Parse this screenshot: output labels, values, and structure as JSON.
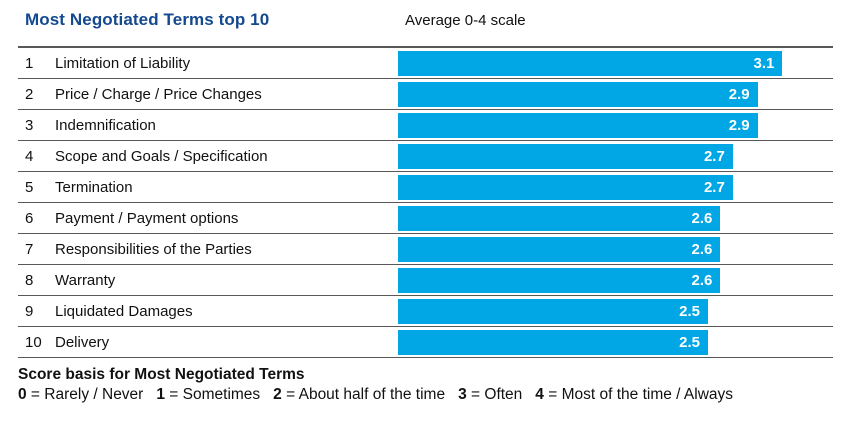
{
  "header": {
    "title": "Most Negotiated Terms top 10",
    "scale_note": "Average 0-4 scale"
  },
  "chart_data": {
    "type": "bar",
    "orientation": "horizontal",
    "title": "Most Negotiated Terms top 10",
    "scale_label": "Average 0-4 scale",
    "xlim": [
      0,
      4
    ],
    "grid": false,
    "legend_position": "none",
    "bar_color": "#00a7e4",
    "title_color": "#14498f",
    "ranks": [
      "1",
      "2",
      "3",
      "4",
      "5",
      "6",
      "7",
      "8",
      "9",
      "10"
    ],
    "categories": [
      "Limitation of Liability",
      "Price / Charge / Price Changes",
      "Indemnification",
      "Scope and Goals / Specification",
      "Termination",
      "Payment / Payment options",
      "Responsibilities of the Parties",
      "Warranty",
      "Liquidated Damages",
      "Delivery"
    ],
    "values": [
      3.1,
      2.9,
      2.9,
      2.7,
      2.7,
      2.6,
      2.6,
      2.6,
      2.5,
      2.5
    ],
    "value_labels": [
      "3.1",
      "2.9",
      "2.9",
      "2.7",
      "2.7",
      "2.6",
      "2.6",
      "2.6",
      "2.5",
      "2.5"
    ]
  },
  "footer": {
    "title": "Score basis for Most Negotiated Terms",
    "legend": [
      {
        "score": "0",
        "meaning": "Rarely / Never"
      },
      {
        "score": "1",
        "meaning": "Sometimes"
      },
      {
        "score": "2",
        "meaning": "About half of the time"
      },
      {
        "score": "3",
        "meaning": "Often"
      },
      {
        "score": "4",
        "meaning": "Most of the time / Always"
      }
    ]
  }
}
